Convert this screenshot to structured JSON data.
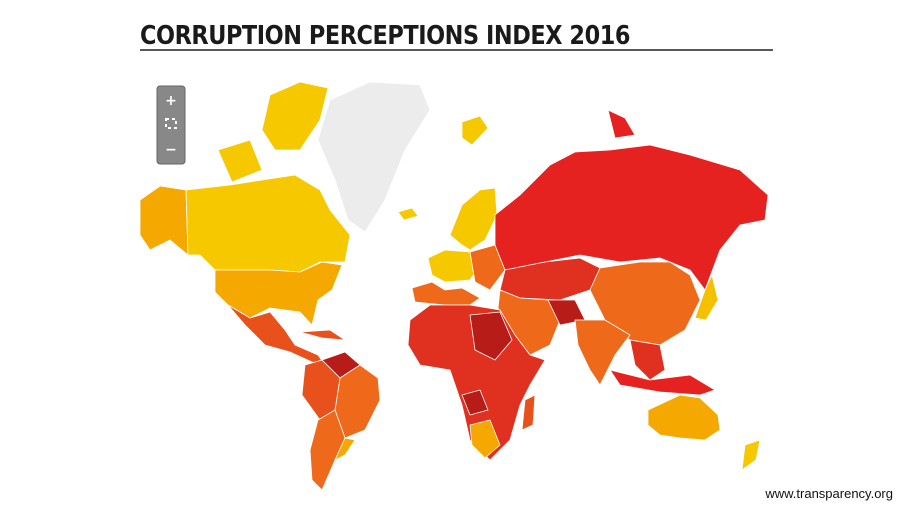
{
  "header": {
    "title": "CORRUPTION PERCEPTIONS INDEX 2016"
  },
  "map_controls": {
    "zoom_in": "+",
    "zoom_out": "−"
  },
  "footer": {
    "url": "www.transparency.org"
  }
}
